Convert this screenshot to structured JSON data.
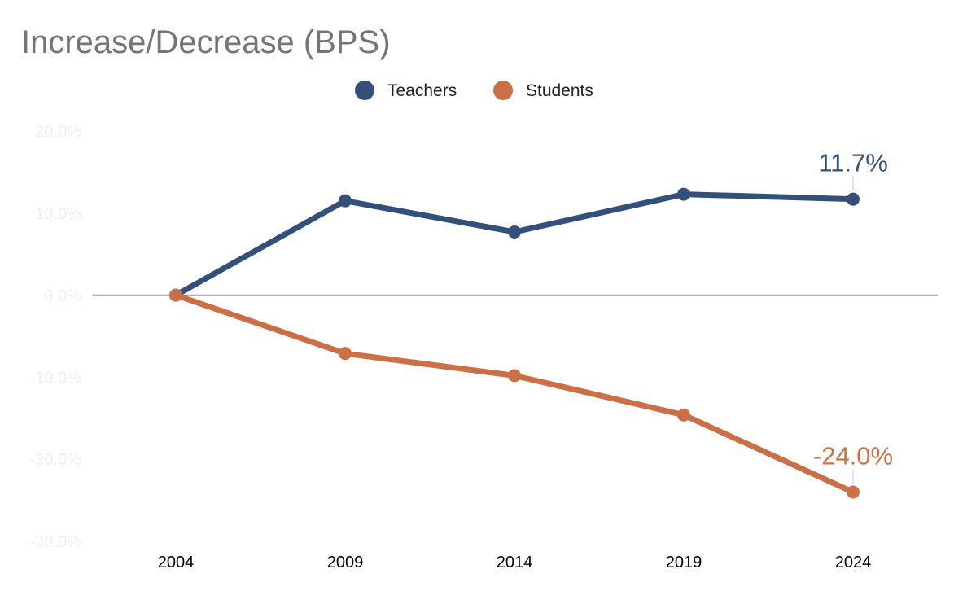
{
  "chart_data": {
    "type": "line",
    "title": "Increase/Decrease (BPS)",
    "xlabel": "",
    "ylabel": "",
    "categories": [
      "2004",
      "2009",
      "2014",
      "2019",
      "2024"
    ],
    "ylim": [
      -30,
      20
    ],
    "yticks": [
      "20.0%",
      "10.0%",
      "0.0%",
      "-10.0%",
      "-20.0%",
      "-30.0%"
    ],
    "ytick_values": [
      20,
      10,
      0,
      -10,
      -20,
      -30
    ],
    "legend_position": "top",
    "grid": false,
    "baseline": 0,
    "series": [
      {
        "name": "Teachers",
        "color": "#33507a",
        "values": [
          0,
          11.5,
          7.7,
          12.3,
          11.7
        ],
        "end_label": "11.7%"
      },
      {
        "name": "Students",
        "color": "#cb6f46",
        "values": [
          0,
          -7.1,
          -9.8,
          -14.6,
          -24.0
        ],
        "end_label": "-24.0%"
      }
    ]
  }
}
